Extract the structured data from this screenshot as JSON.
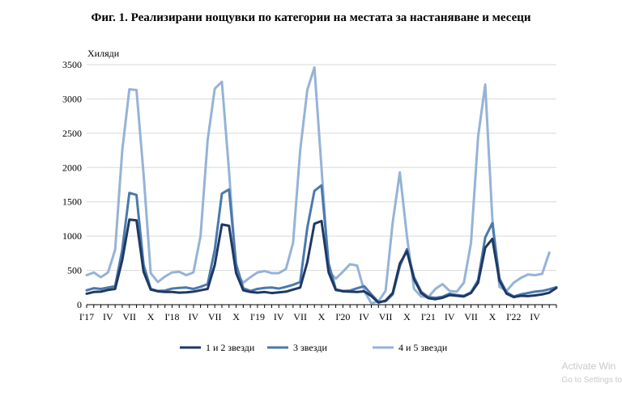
{
  "figure_title": "Фиг. 1. Реализирани нощувки по категории на местата за настаняване и месеци",
  "windows_watermark": {
    "line1": "Activate Win",
    "line2": "Go to Settings to"
  },
  "chart_data": {
    "type": "line",
    "title": "Фиг. 1. Реализирани нощувки по категории на местата за настаняване и месеци",
    "ylabel": "Хиляди",
    "ylim": [
      0,
      3500
    ],
    "yticks": [
      0,
      500,
      1000,
      1500,
      2000,
      2500,
      3000,
      3500
    ],
    "grid": "horizontal",
    "legend": "bottom",
    "x_tick_labels": [
      {
        "index": 0,
        "label": "I'17"
      },
      {
        "index": 3,
        "label": "IV"
      },
      {
        "index": 6,
        "label": "VII"
      },
      {
        "index": 9,
        "label": "X"
      },
      {
        "index": 12,
        "label": "I'18"
      },
      {
        "index": 15,
        "label": "IV"
      },
      {
        "index": 18,
        "label": "VII"
      },
      {
        "index": 21,
        "label": "X"
      },
      {
        "index": 24,
        "label": "I'19"
      },
      {
        "index": 27,
        "label": "IV"
      },
      {
        "index": 30,
        "label": "VII"
      },
      {
        "index": 33,
        "label": "X"
      },
      {
        "index": 36,
        "label": "I'20"
      },
      {
        "index": 39,
        "label": "IV"
      },
      {
        "index": 42,
        "label": "VII"
      },
      {
        "index": 45,
        "label": "X"
      },
      {
        "index": 48,
        "label": "I'21"
      },
      {
        "index": 51,
        "label": "IV"
      },
      {
        "index": 54,
        "label": "VII"
      },
      {
        "index": 57,
        "label": "X"
      },
      {
        "index": 60,
        "label": "I'22"
      },
      {
        "index": 63,
        "label": "IV"
      }
    ],
    "series": [
      {
        "name": "1 и 2 звезди",
        "color": "#1f3864",
        "values": [
          160,
          185,
          190,
          215,
          230,
          650,
          1240,
          1230,
          480,
          220,
          195,
          185,
          185,
          175,
          180,
          190,
          210,
          230,
          580,
          1170,
          1150,
          460,
          210,
          185,
          175,
          185,
          170,
          180,
          190,
          220,
          250,
          620,
          1180,
          1220,
          470,
          215,
          195,
          190,
          185,
          195,
          125,
          30,
          60,
          170,
          600,
          780,
          370,
          170,
          95,
          80,
          100,
          140,
          130,
          120,
          170,
          320,
          830,
          960,
          350,
          160,
          110,
          130,
          125,
          135,
          150,
          175,
          245
        ]
      },
      {
        "name": "3 звезди",
        "color": "#4a79ac",
        "values": [
          210,
          240,
          230,
          250,
          270,
          800,
          1630,
          1600,
          580,
          230,
          200,
          205,
          235,
          245,
          250,
          230,
          260,
          300,
          800,
          1620,
          1680,
          590,
          240,
          200,
          230,
          245,
          250,
          235,
          260,
          290,
          330,
          1120,
          1660,
          1740,
          600,
          225,
          200,
          205,
          240,
          270,
          150,
          40,
          50,
          150,
          560,
          810,
          400,
          190,
          110,
          100,
          115,
          160,
          140,
          130,
          180,
          360,
          980,
          1190,
          380,
          180,
          120,
          150,
          170,
          190,
          200,
          225,
          255
        ]
      },
      {
        "name": "4 и 5 звезди",
        "color": "#95b3d7",
        "values": [
          430,
          470,
          400,
          470,
          800,
          2250,
          3140,
          3130,
          1900,
          460,
          330,
          410,
          470,
          480,
          430,
          470,
          1000,
          2400,
          3150,
          3250,
          1950,
          470,
          320,
          400,
          470,
          490,
          460,
          460,
          520,
          900,
          2250,
          3130,
          3460,
          1990,
          490,
          380,
          480,
          590,
          570,
          200,
          20,
          50,
          200,
          1200,
          1930,
          1000,
          230,
          120,
          110,
          230,
          300,
          200,
          190,
          320,
          900,
          2450,
          3210,
          1250,
          260,
          200,
          320,
          390,
          440,
          430,
          450,
          760
        ]
      }
    ]
  }
}
